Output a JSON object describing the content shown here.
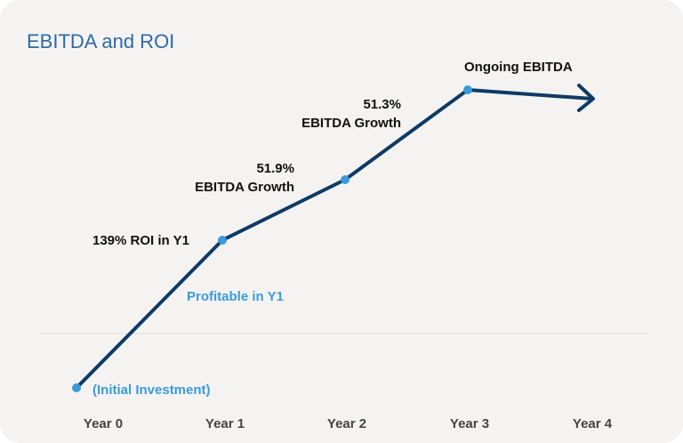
{
  "chart_data": {
    "type": "line",
    "title": "EBITDA and ROI",
    "categories": [
      "Year 0",
      "Year 1",
      "Year 2",
      "Year 3",
      "Year 4"
    ],
    "annotations": [
      {
        "at": "Year 0",
        "text": "(Initial Investment)",
        "color": "#3a9ad9"
      },
      {
        "at": "Year 1",
        "text": "139% ROI in Y1",
        "color": "#111111"
      },
      {
        "at": "Year 1",
        "text": "Profitable in Y1",
        "color": "#3a9ad9"
      },
      {
        "at": "Year 2",
        "lines": [
          "51.9%",
          "EBITDA Growth"
        ],
        "color": "#111111"
      },
      {
        "at": "Year 3",
        "lines": [
          "51.3%",
          "EBITDA Growth"
        ],
        "color": "#111111"
      },
      {
        "at": "Year 3",
        "text": "Ongoing EBITDA",
        "color": "#111111"
      }
    ],
    "grid": false,
    "zero_line": true
  },
  "colors": {
    "line": "#0f3a66",
    "marker": "#3a9ad9",
    "title": "#2d6aa6"
  }
}
